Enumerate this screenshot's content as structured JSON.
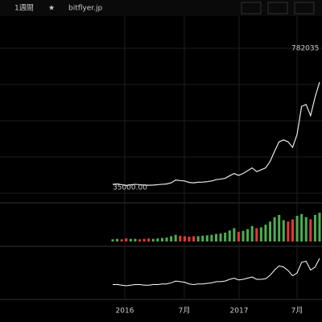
{
  "toolbar": {
    "interval": "1週間",
    "symbol": "bitflyer.jp"
  },
  "chart_data": {
    "type": "line",
    "price_labels": {
      "high": "782035",
      "low": "35000.00"
    },
    "x_labels": [
      "2016",
      "7月",
      "2017",
      "7月"
    ],
    "categories": [
      null,
      null,
      null,
      null,
      null,
      null,
      null,
      null,
      null,
      null,
      null,
      null,
      null,
      null,
      null,
      null,
      null,
      null,
      null,
      null,
      null,
      null,
      null,
      null,
      null,
      null,
      null,
      null,
      null,
      null,
      null,
      null,
      null,
      null,
      null,
      null,
      null,
      null,
      null,
      null,
      null,
      null,
      null,
      null,
      null,
      null,
      null
    ],
    "series": [
      {
        "color": "#e8e8e8",
        "values": [
          52000,
          54000,
          50000,
          46000,
          49000,
          52000,
          50000,
          48000,
          47000,
          48000,
          50000,
          52000,
          54000,
          60000,
          75000,
          72000,
          70000,
          62000,
          60000,
          63000,
          64000,
          66000,
          70000,
          77000,
          80000,
          84000,
          98000,
          110000,
          100000,
          110000,
          125000,
          140000,
          120000,
          130000,
          140000,
          175000,
          230000,
          280000,
          290000,
          280000,
          250000,
          320000,
          470000,
          480000,
          420000,
          520000,
          600000
        ]
      },
      {
        "color": "#4caf50",
        "values": [
          5,
          6,
          5,
          7,
          6,
          6,
          5,
          6,
          7,
          6,
          7,
          8,
          9,
          12,
          15,
          13,
          12,
          11,
          12,
          12,
          13,
          14,
          15,
          17,
          18,
          20,
          25,
          30,
          22,
          24,
          28,
          35,
          30,
          32,
          38,
          45,
          55,
          60,
          48,
          45,
          50,
          58,
          62,
          55,
          50,
          60,
          65
        ]
      },
      {
        "color": "#ffffff",
        "values": [
          0,
          0,
          -1,
          -2,
          -1,
          0,
          0,
          -1,
          -1,
          0,
          0,
          1,
          1,
          3,
          6,
          5,
          4,
          1,
          0,
          1,
          1,
          2,
          3,
          5,
          5,
          6,
          9,
          11,
          8,
          9,
          11,
          13,
          9,
          9,
          10,
          16,
          25,
          32,
          30,
          24,
          15,
          20,
          38,
          40,
          25,
          30,
          45
        ]
      }
    ],
    "ylim": [
      0,
      954000
    ],
    "vlim": [
      0,
      80
    ],
    "mlim": [
      -20,
      60
    ]
  }
}
